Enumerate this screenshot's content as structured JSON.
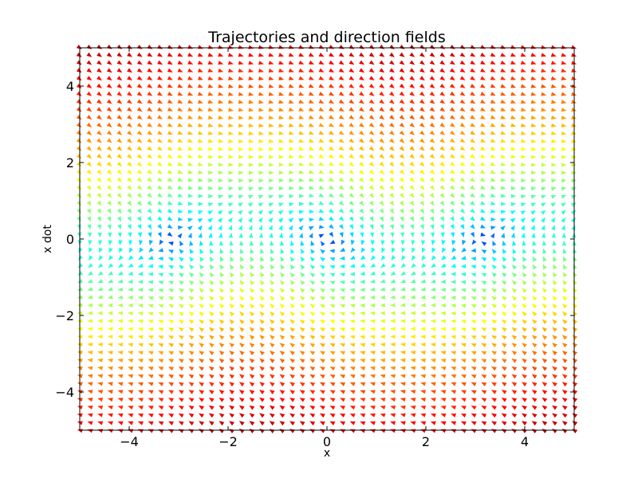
{
  "chart_data": {
    "type": "quiver",
    "title": "Trajectories and direction fields",
    "xlabel": "x",
    "ylabel": "x dot",
    "xlim": [
      -5,
      5
    ],
    "ylim": [
      -5,
      5
    ],
    "x_ticks": [
      {
        "value": -4,
        "label": "−4"
      },
      {
        "value": -2,
        "label": "−2"
      },
      {
        "value": 0,
        "label": "0"
      },
      {
        "value": 2,
        "label": "2"
      },
      {
        "value": 4,
        "label": "4"
      }
    ],
    "y_ticks": [
      {
        "value": -4,
        "label": "−4"
      },
      {
        "value": -2,
        "label": "−2"
      },
      {
        "value": 0,
        "label": "0"
      },
      {
        "value": 2,
        "label": "2"
      },
      {
        "value": 4,
        "label": "4"
      }
    ],
    "grid": false,
    "grid_x": {
      "start": -5,
      "stop": 5,
      "count": 50
    },
    "grid_y": {
      "start": -5,
      "stop": 5,
      "count": 50
    },
    "vector_field": {
      "dx": "y",
      "dy": "-sin(x) - 0.5*y"
    },
    "colormap": "jet",
    "colors": {
      "axes": "#000000",
      "background": "#ffffff"
    }
  }
}
